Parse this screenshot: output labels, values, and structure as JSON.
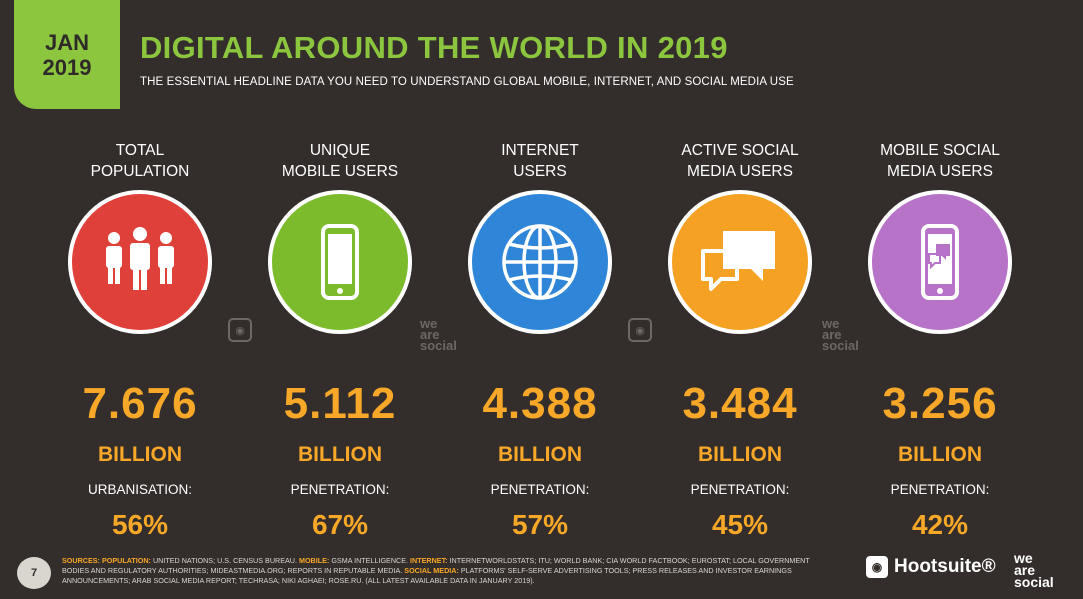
{
  "header": {
    "badge_month": "JAN",
    "badge_year": "2019",
    "title": "DIGITAL AROUND THE WORLD IN 2019",
    "subtitle": "THE ESSENTIAL HEADLINE DATA YOU NEED TO UNDERSTAND GLOBAL MOBILE, INTERNET, AND SOCIAL MEDIA USE"
  },
  "colors": {
    "background": "#332d2b",
    "title_green": "#8cc63f",
    "value_orange": "#f7a828",
    "population_red": "#e0403a",
    "mobile_green": "#7cbb2c",
    "internet_blue": "#2f86d8",
    "social_orange": "#f5a124",
    "mobile_social_purple": "#b773c8"
  },
  "stats": [
    {
      "label_line1": "TOTAL",
      "label_line2": "POPULATION",
      "icon": "people-icon",
      "value": "7.676",
      "unit": "BILLION",
      "sub_label": "URBANISATION:",
      "percent": "56%"
    },
    {
      "label_line1": "UNIQUE",
      "label_line2": "MOBILE USERS",
      "icon": "mobile-phone-icon",
      "value": "5.112",
      "unit": "BILLION",
      "sub_label": "PENETRATION:",
      "percent": "67%"
    },
    {
      "label_line1": "INTERNET",
      "label_line2": "USERS",
      "icon": "globe-icon",
      "value": "4.388",
      "unit": "BILLION",
      "sub_label": "PENETRATION:",
      "percent": "57%"
    },
    {
      "label_line1": "ACTIVE SOCIAL",
      "label_line2": "MEDIA USERS",
      "icon": "chat-bubbles-icon",
      "value": "3.484",
      "unit": "BILLION",
      "sub_label": "PENETRATION:",
      "percent": "45%"
    },
    {
      "label_line1": "MOBILE SOCIAL",
      "label_line2": "MEDIA USERS",
      "icon": "mobile-chat-icon",
      "value": "3.256",
      "unit": "BILLION",
      "sub_label": "PENETRATION:",
      "percent": "42%"
    }
  ],
  "watermark": {
    "was_line1": "we",
    "was_line2": "are",
    "was_line3": "social"
  },
  "footer": {
    "page_number": "7",
    "sources_label": "SOURCES:",
    "population_label": "POPULATION:",
    "population_text": "UNITED NATIONS; U.S. CENSUS BUREAU.",
    "mobile_label": "MOBILE:",
    "mobile_text": "GSMA INTELLIGENCE.",
    "internet_label": "INTERNET:",
    "internet_text": "INTERNETWORLDSTATS; ITU; WORLD BANK; CIA WORLD FACTBOOK; EUROSTAT; LOCAL GOVERNMENT BODIES AND REGULATORY AUTHORITIES; MIDEASTMEDIA.ORG; REPORTS IN REPUTABLE MEDIA.",
    "social_label": "SOCIAL MEDIA:",
    "social_text": "PLATFORMS' SELF-SERVE ADVERTISING TOOLS; PRESS RELEASES AND INVESTOR EARNINGS ANNOUNCEMENTS; ARAB SOCIAL MEDIA REPORT; TECHRASA; NIKI AGHAEI; ROSE.RU. (ALL LATEST AVAILABLE DATA IN JANUARY 2019).",
    "hootsuite": "Hootsuite®",
    "was_line1": "we",
    "was_line2": "are",
    "was_line3": "social"
  }
}
